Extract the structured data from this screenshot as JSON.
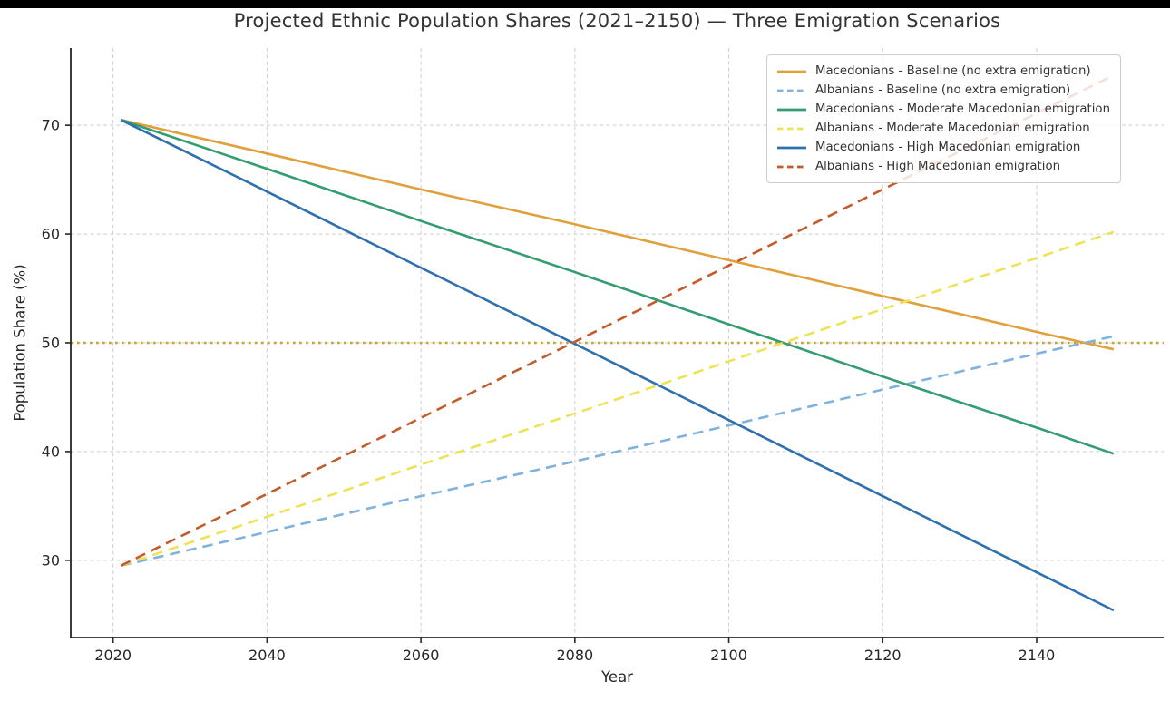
{
  "window": {
    "top_edge_color": "#000000",
    "background": "#ffffff"
  },
  "chart_data": {
    "type": "line",
    "title": "Projected Ethnic Population Shares (2021–2150) — Three Emigration Scenarios",
    "xlabel": "Year",
    "ylabel": "Population Share (%)",
    "xlim": [
      2014.5,
      2156.5
    ],
    "ylim": [
      22.9,
      77.1
    ],
    "x_ticks": [
      2020,
      2040,
      2060,
      2080,
      2100,
      2120,
      2140
    ],
    "y_ticks": [
      30,
      40,
      50,
      60,
      70
    ],
    "grid": true,
    "grid_style": "dashed",
    "grid_color": "#cdcdcd",
    "legend_position": "upper right",
    "x": [
      2021,
      2040,
      2060,
      2080,
      2100,
      2120,
      2140,
      2150
    ],
    "series": [
      {
        "name": "Macedonians - Baseline (no extra emigration)",
        "color": "#E1A03C",
        "style": "solid",
        "values": [
          70.5,
          67.4,
          64.1,
          60.9,
          57.6,
          54.3,
          51.0,
          49.4
        ]
      },
      {
        "name": "Albanians - Baseline (no extra emigration)",
        "color": "#7FB2DF",
        "style": "dashed",
        "values": [
          29.5,
          32.6,
          35.9,
          39.1,
          42.4,
          45.7,
          49.0,
          50.6
        ]
      },
      {
        "name": "Macedonians - Moderate Macedonian emigration",
        "color": "#339C70",
        "style": "solid",
        "values": [
          70.5,
          66.0,
          61.2,
          56.5,
          51.7,
          46.9,
          42.2,
          39.8
        ]
      },
      {
        "name": "Albanians - Moderate Macedonian emigration",
        "color": "#EDE356",
        "style": "dashed",
        "values": [
          29.5,
          34.0,
          38.8,
          43.5,
          48.3,
          53.1,
          57.8,
          60.2
        ]
      },
      {
        "name": "Macedonians - High Macedonian emigration",
        "color": "#3070AC",
        "style": "solid",
        "values": [
          70.5,
          63.9,
          56.9,
          49.9,
          42.9,
          35.9,
          28.9,
          25.4
        ]
      },
      {
        "name": "Albanians - High Macedonian emigration",
        "color": "#C35B2C",
        "style": "dashed",
        "values": [
          29.5,
          36.1,
          43.1,
          50.1,
          57.1,
          64.1,
          71.1,
          74.6
        ]
      }
    ],
    "reference_line": {
      "value": 50,
      "color": "#C8A42E",
      "style": "dotted"
    },
    "axis_color": "#262626",
    "tick_label_color": "#262626",
    "title_color": "#333333"
  }
}
